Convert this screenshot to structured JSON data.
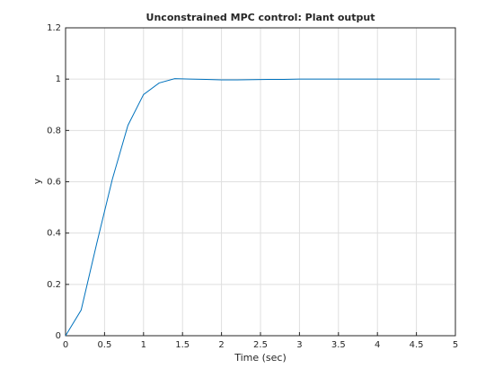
{
  "chart_data": {
    "type": "line",
    "title": "Unconstrained MPC control: Plant output",
    "x_label": "Time (sec)",
    "y_label": "y",
    "x": [
      0,
      0.2,
      0.4,
      0.6,
      0.8,
      1.0,
      1.2,
      1.4,
      1.6,
      1.8,
      2.0,
      2.2,
      2.4,
      2.6,
      2.8,
      3.0,
      3.2,
      3.4,
      3.6,
      3.8,
      4.0,
      4.2,
      4.4,
      4.6,
      4.8
    ],
    "series": [
      {
        "name": "y",
        "color": "#0072bd",
        "values": [
          0,
          0.1,
          0.36,
          0.61,
          0.82,
          0.94,
          0.985,
          1.002,
          1.0,
          0.999,
          0.997,
          0.997,
          0.998,
          0.999,
          0.999,
          1.0,
          1.0,
          1.0,
          1.0,
          1.0,
          1.0,
          1.0,
          1.0,
          1.0,
          1.0
        ]
      }
    ],
    "xlim": [
      0,
      5
    ],
    "xticks": [
      0,
      0.5,
      1,
      1.5,
      2,
      2.5,
      3,
      3.5,
      4,
      4.5,
      5
    ],
    "ylim": [
      0,
      1.2
    ],
    "yticks": [
      0,
      0.2,
      0.4,
      0.6,
      0.8,
      1,
      1.2
    ],
    "grid": true
  }
}
